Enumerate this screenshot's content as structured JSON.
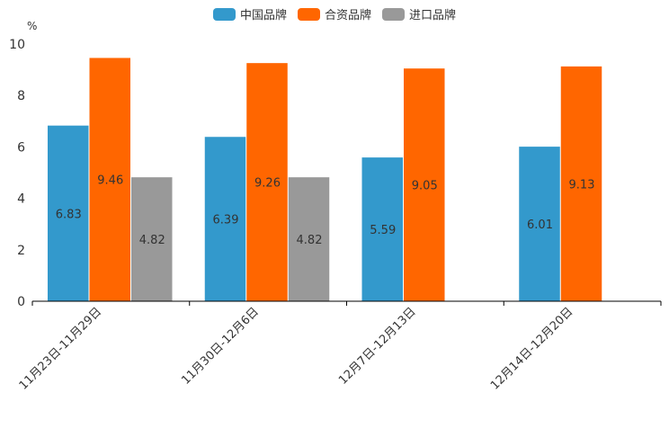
{
  "chart_data": {
    "type": "bar",
    "title": "",
    "ylabel": "%",
    "xlabel": "",
    "ylim": [
      0,
      10
    ],
    "yticks": [
      0,
      2,
      4,
      6,
      8,
      10
    ],
    "categories": [
      "11月23日-11月29日",
      "11月30日-12月6日",
      "12月7日-12月13日",
      "12月14日-12月20日"
    ],
    "series": [
      {
        "name": "中国品牌",
        "color": "#3399cc",
        "values": [
          6.83,
          6.39,
          5.59,
          6.01
        ]
      },
      {
        "name": "合资品牌",
        "color": "#ff6600",
        "values": [
          9.46,
          9.26,
          9.05,
          9.13
        ]
      },
      {
        "name": "进口品牌",
        "color": "#999999",
        "values": [
          4.82,
          4.82,
          null,
          null
        ]
      }
    ]
  }
}
